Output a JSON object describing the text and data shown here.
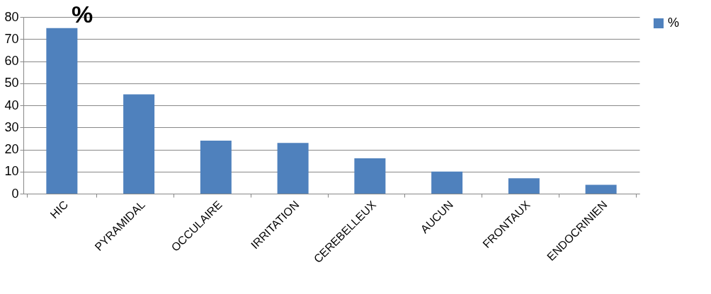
{
  "chart_data": {
    "type": "bar",
    "title": "%",
    "categories": [
      "HIC",
      "PYRAMIDAL",
      "OCCULAIRE",
      "IRRITATION",
      "CEREBELLEUX",
      "AUCUN",
      "FRONTAUX",
      "ENDOCRINIEN"
    ],
    "series": [
      {
        "name": "%",
        "color": "#4f81bd",
        "values": [
          75,
          45,
          24,
          23,
          16,
          10,
          7,
          4
        ]
      }
    ],
    "ylim": [
      0,
      80
    ],
    "yticks": [
      0,
      10,
      20,
      30,
      40,
      50,
      60,
      70,
      80
    ],
    "grid": "y",
    "legend": "right"
  }
}
